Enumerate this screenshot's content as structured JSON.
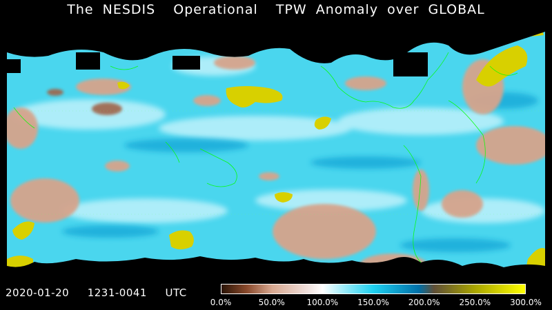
{
  "title": "The NESDIS  Operational  TPW Anomaly over GLOBAL",
  "timestamp": "2020-01-20  1231-0041  UTC",
  "colorbar": {
    "min_percent": 0,
    "max_percent": 300,
    "ticks": [
      "0.0%",
      "50.0%",
      "100.0%",
      "150.0%",
      "200.0%",
      "250.0%",
      "300.0%"
    ],
    "stops": [
      {
        "percent": 0,
        "color": "#2a1406"
      },
      {
        "percent": 25,
        "color": "#8a4a2c"
      },
      {
        "percent": 50,
        "color": "#d8a890"
      },
      {
        "percent": 85,
        "color": "#f0e0dc"
      },
      {
        "percent": 100,
        "color": "#ffffff"
      },
      {
        "percent": 125,
        "color": "#8ae8f8"
      },
      {
        "percent": 150,
        "color": "#1ed0f0"
      },
      {
        "percent": 195,
        "color": "#0070a8"
      },
      {
        "percent": 210,
        "color": "#605038"
      },
      {
        "percent": 250,
        "color": "#a8a400"
      },
      {
        "percent": 300,
        "color": "#ffff00"
      }
    ]
  },
  "colors": {
    "background": "#000000",
    "coastline": "#00ff00",
    "ocean_base": "#48d8f0",
    "dry_anomaly": "#d8a48c",
    "moist_anomaly": "#d8d000"
  }
}
